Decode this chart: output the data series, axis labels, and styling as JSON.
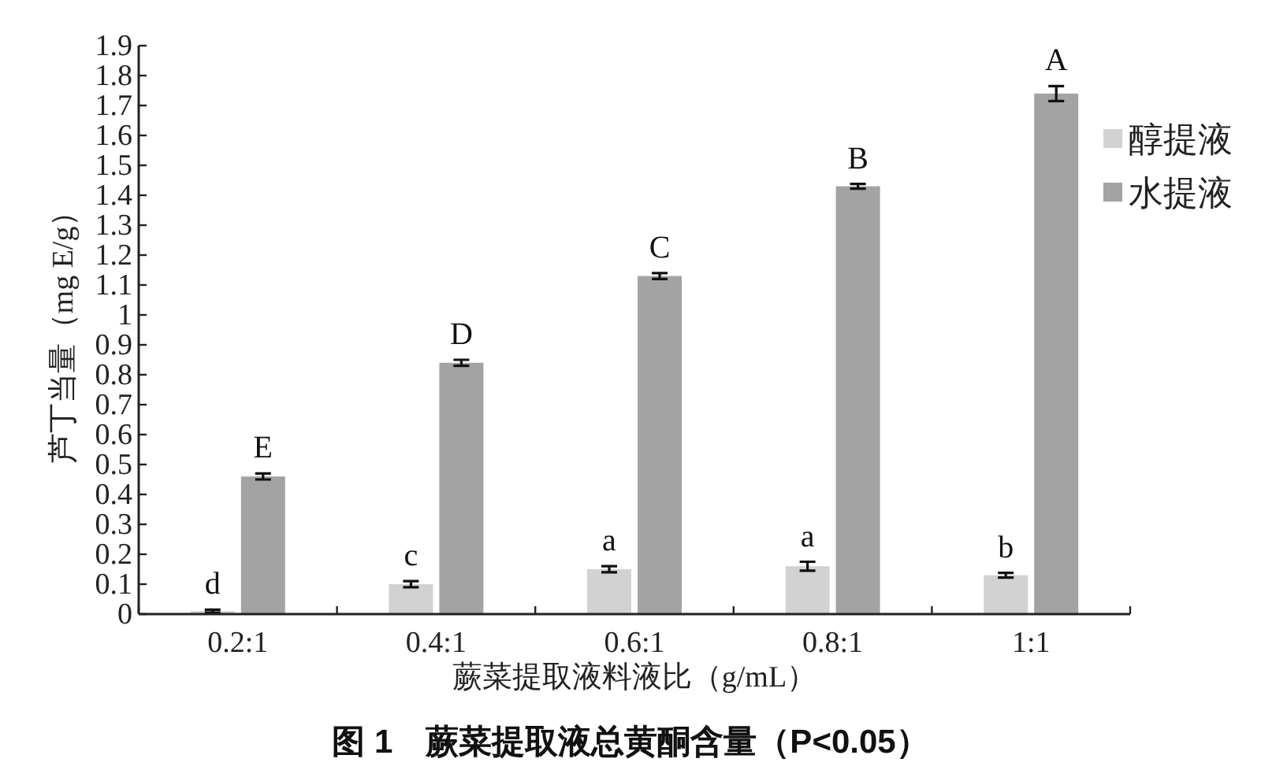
{
  "chart_data": {
    "type": "bar",
    "title": "图 1　蕨菜提取液总黄酮含量（P<0.05）",
    "xlabel": "蕨菜提取液料液比（g/mL）",
    "ylabel": "芦丁当量（mg E/g）",
    "categories": [
      "0.2:1",
      "0.4:1",
      "0.6:1",
      "0.8:1",
      "1:1"
    ],
    "series": [
      {
        "name": "醇提液",
        "color": "#d2d2d2",
        "values": [
          0.01,
          0.1,
          0.15,
          0.16,
          0.13
        ],
        "errors": [
          0.005,
          0.01,
          0.01,
          0.015,
          0.008
        ]
      },
      {
        "name": "水提液",
        "color": "#a3a3a3",
        "values": [
          0.46,
          0.84,
          1.13,
          1.43,
          1.74
        ],
        "errors": [
          0.01,
          0.01,
          0.01,
          0.008,
          0.025
        ]
      }
    ],
    "ylim": [
      0,
      1.9
    ],
    "yticks": [
      0,
      0.1,
      0.2,
      0.3,
      0.4,
      0.5,
      0.6,
      0.7,
      0.8,
      0.9,
      1,
      1.1,
      1.2,
      1.3,
      1.4,
      1.5,
      1.6,
      1.7,
      1.8,
      1.9
    ],
    "grid": false,
    "legend": "right",
    "annotations": [
      {
        "text": "d",
        "x": "0.2:1",
        "y": 0.01
      },
      {
        "text": "c",
        "x": "0.4:1",
        "y": 0.1
      },
      {
        "text": "a",
        "x": "0.6:1",
        "y": 0.15
      },
      {
        "text": "a",
        "x": "0.8:1",
        "y": 0.16
      },
      {
        "text": "b",
        "x": "1:1",
        "y": 0.13
      },
      {
        "text": "E",
        "x": "0.2:1",
        "y": 0.46
      },
      {
        "text": "D",
        "x": "0.4:1",
        "y": 0.84
      },
      {
        "text": "C",
        "x": "0.6:1",
        "y": 1.13
      },
      {
        "text": "B",
        "x": "0.8:1",
        "y": 1.43
      },
      {
        "text": "A",
        "x": "1:1",
        "y": 1.74
      }
    ]
  }
}
